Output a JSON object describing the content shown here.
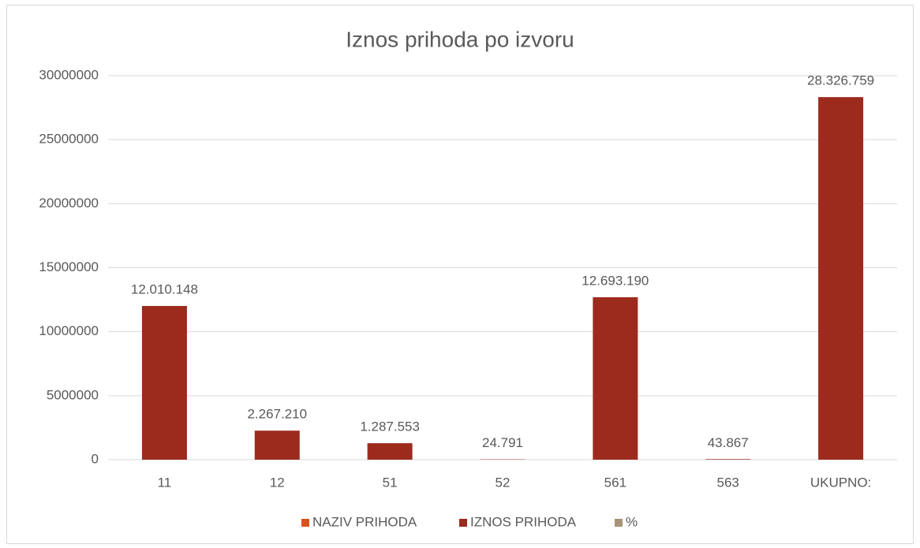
{
  "chart_data": {
    "type": "bar",
    "title": "Iznos prihoda po izvoru",
    "categories": [
      "11",
      "12",
      "51",
      "52",
      "561",
      "563",
      "UKUPNO:"
    ],
    "series": [
      {
        "name": "NAZIV PRIHODA",
        "color": "#d9531e",
        "values": [
          null,
          null,
          null,
          null,
          null,
          null,
          null
        ]
      },
      {
        "name": "IZNOS PRIHODA",
        "color": "#9c2b1e",
        "values": [
          12010148,
          2267210,
          1287553,
          24791,
          12693190,
          43867,
          28326759
        ],
        "value_labels": [
          "12.010.148",
          "2.267.210",
          "1.287.553",
          "24.791",
          "12.693.190",
          "43.867",
          "28.326.759"
        ]
      },
      {
        "name": "%",
        "color": "#a89476",
        "values": [
          null,
          null,
          null,
          null,
          null,
          null,
          null
        ]
      }
    ],
    "ylim": [
      0,
      30000000
    ],
    "yticks": [
      0,
      5000000,
      10000000,
      15000000,
      20000000,
      25000000,
      30000000
    ],
    "grid": true,
    "legend": "bottom"
  }
}
